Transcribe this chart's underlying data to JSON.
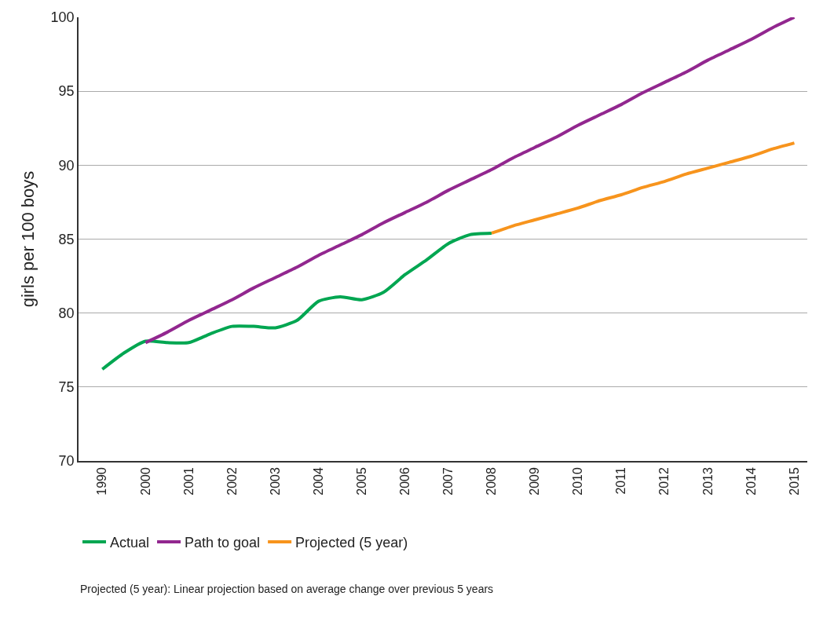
{
  "chart_data": {
    "type": "line",
    "ylabel": "girls per 100 boys",
    "categories": [
      "1990",
      null,
      "2000",
      null,
      "2001",
      null,
      "2002",
      null,
      "2003",
      null,
      "2004",
      null,
      "2005",
      null,
      "2006",
      null,
      "2007",
      null,
      "2008",
      null,
      "2009",
      null,
      "2010",
      null,
      "2011",
      null,
      "2012",
      null,
      "2013",
      null,
      "2014",
      null,
      "2015"
    ],
    "ylim": [
      70,
      100
    ],
    "yticks": [
      70,
      75,
      80,
      85,
      90,
      95,
      100
    ],
    "grid": "y",
    "legend": "bottom",
    "marker": "none",
    "line_style": "solid",
    "series": [
      {
        "name": "Actual",
        "color": "#00a651",
        "values": [
          76.2,
          77.3,
          78.1,
          78.0,
          78.0,
          78.6,
          79.1,
          79.1,
          79.0,
          79.5,
          80.8,
          81.1,
          80.9,
          81.4,
          82.6,
          83.6,
          84.7,
          85.3,
          85.4,
          null,
          null,
          null,
          null,
          null,
          null,
          null,
          null,
          null,
          null,
          null,
          null,
          null,
          null
        ]
      },
      {
        "name": "Path to goal",
        "color": "#92278f",
        "values": [
          null,
          null,
          78.0,
          78.7,
          79.5,
          80.2,
          80.9,
          81.7,
          82.4,
          83.1,
          83.9,
          84.6,
          85.3,
          86.1,
          86.8,
          87.5,
          88.3,
          89.0,
          89.7,
          90.5,
          91.2,
          91.9,
          92.7,
          93.4,
          94.1,
          94.9,
          95.6,
          96.3,
          97.1,
          97.8,
          98.5,
          99.3,
          100
        ]
      },
      {
        "name": "Projected (5 year)",
        "color": "#f7941d",
        "values": [
          null,
          null,
          null,
          null,
          null,
          null,
          null,
          null,
          null,
          null,
          null,
          null,
          null,
          null,
          null,
          null,
          null,
          null,
          85.4,
          85.9,
          86.3,
          86.7,
          87.1,
          87.6,
          88.0,
          88.5,
          88.9,
          89.4,
          89.8,
          90.2,
          90.6,
          91.1,
          91.5
        ]
      }
    ],
    "annotations": [
      "Projected (5 year): Linear projection based on average change over previous 5 years"
    ]
  }
}
